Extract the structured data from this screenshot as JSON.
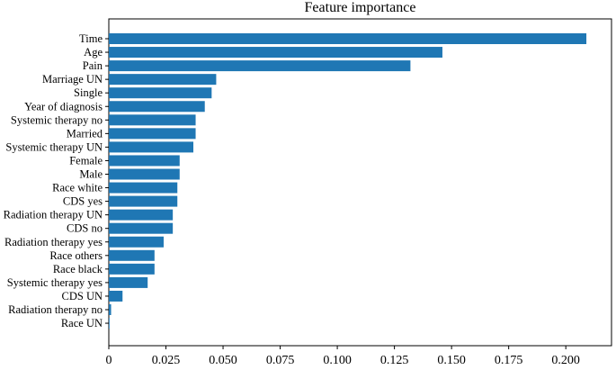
{
  "chart_data": {
    "type": "bar",
    "orientation": "horizontal",
    "title": "Feature importance",
    "xlabel": "",
    "ylabel": "",
    "categories": [
      "Time",
      "Age",
      "Pain",
      "Marriage UN",
      "Single",
      "Year of diagnosis",
      "Systemic therapy no",
      "Married",
      "Systemic therapy UN",
      "Female",
      "Male",
      "Race white",
      "CDS yes",
      "Radiation therapy UN",
      "CDS no",
      "Radiation therapy yes",
      "Race others",
      "Race black",
      "Systemic therapy yes",
      "CDS UN",
      "Radiation therapy no",
      "Race UN"
    ],
    "values": [
      0.209,
      0.146,
      0.132,
      0.047,
      0.045,
      0.042,
      0.038,
      0.038,
      0.037,
      0.031,
      0.031,
      0.03,
      0.03,
      0.028,
      0.028,
      0.024,
      0.02,
      0.02,
      0.017,
      0.006,
      0.001,
      0.0003
    ],
    "xlim": [
      0,
      0.22
    ],
    "xticks": [
      0,
      0.025,
      0.05,
      0.075,
      0.1,
      0.125,
      0.15,
      0.175,
      0.2
    ],
    "xtick_labels": [
      "0",
      "0.025",
      "0.050",
      "0.075",
      "0.100",
      "0.125",
      "0.150",
      "0.175",
      "0.200"
    ],
    "grid": false,
    "bar_color": "#1f77b4"
  }
}
